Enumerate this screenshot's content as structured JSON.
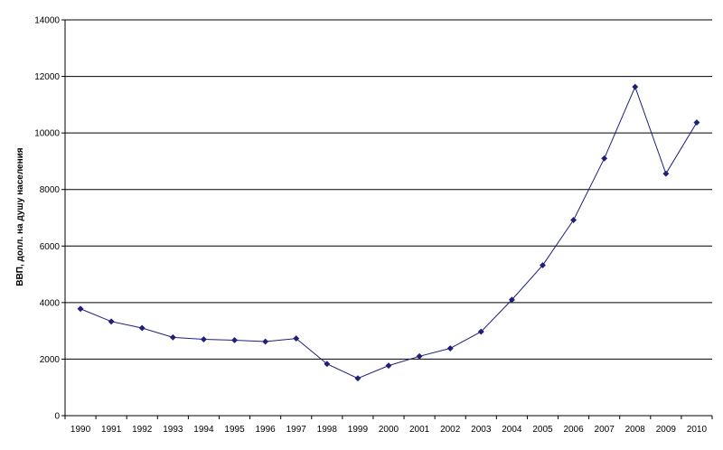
{
  "chart_data": {
    "type": "line",
    "ylabel": "ВВП, долл. на душу населения",
    "xlabel": "",
    "ylim": [
      0,
      14000
    ],
    "y_ticks": [
      "0",
      "2000",
      "4000",
      "6000",
      "8000",
      "10000",
      "12000",
      "14000"
    ],
    "categories": [
      "1990",
      "1991",
      "1992",
      "1993",
      "1994",
      "1995",
      "1996",
      "1997",
      "1998",
      "1999",
      "2000",
      "2001",
      "2002",
      "2003",
      "2004",
      "2005",
      "2006",
      "2007",
      "2008",
      "2009",
      "2010"
    ],
    "series": [
      {
        "values": [
          3780,
          3330,
          3100,
          2770,
          2700,
          2670,
          2620,
          2730,
          1830,
          1320,
          1770,
          2100,
          2380,
          2970,
          4100,
          5320,
          6920,
          9100,
          11630,
          8560,
          10370
        ],
        "color": "#1f1f7a"
      }
    ],
    "grid": "horizontal",
    "legend": "none"
  }
}
